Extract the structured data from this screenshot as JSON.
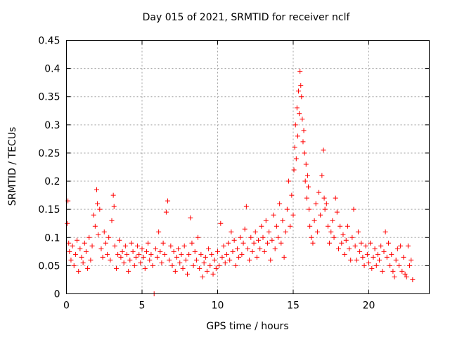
{
  "chart_data": {
    "type": "scatter",
    "title": "Day 015 of 2021, SRMTID for receiver nclf",
    "xlabel": "GPS time / hours",
    "ylabel": "SRMTID / TECUs",
    "xlim": [
      0,
      24
    ],
    "ylim": [
      0,
      0.45
    ],
    "xticks": [
      0,
      5,
      10,
      15,
      20
    ],
    "yticks": [
      0,
      0.05,
      0.1,
      0.15,
      0.2,
      0.25,
      0.3,
      0.35,
      0.4,
      0.45
    ],
    "grid": true,
    "marker": "+",
    "color": "#ff0000",
    "series": [
      {
        "name": "SRMTID",
        "points": [
          [
            0.05,
            0.125
          ],
          [
            0.1,
            0.165
          ],
          [
            0.15,
            0.09
          ],
          [
            0.2,
            0.075
          ],
          [
            0.3,
            0.06
          ],
          [
            0.4,
            0.085
          ],
          [
            0.5,
            0.05
          ],
          [
            0.6,
            0.07
          ],
          [
            0.7,
            0.095
          ],
          [
            0.8,
            0.04
          ],
          [
            0.9,
            0.08
          ],
          [
            1.0,
            0.065
          ],
          [
            1.1,
            0.055
          ],
          [
            1.2,
            0.09
          ],
          [
            1.3,
            0.075
          ],
          [
            1.4,
            0.045
          ],
          [
            1.5,
            0.1
          ],
          [
            1.6,
            0.06
          ],
          [
            1.7,
            0.085
          ],
          [
            1.8,
            0.14
          ],
          [
            1.9,
            0.12
          ],
          [
            2.0,
            0.185
          ],
          [
            2.05,
            0.16
          ],
          [
            2.1,
            0.105
          ],
          [
            2.2,
            0.15
          ],
          [
            2.3,
            0.08
          ],
          [
            2.4,
            0.065
          ],
          [
            2.5,
            0.11
          ],
          [
            2.6,
            0.09
          ],
          [
            2.7,
            0.07
          ],
          [
            2.8,
            0.1
          ],
          [
            2.9,
            0.06
          ],
          [
            3.0,
            0.13
          ],
          [
            3.1,
            0.175
          ],
          [
            3.15,
            0.155
          ],
          [
            3.2,
            0.085
          ],
          [
            3.3,
            0.045
          ],
          [
            3.4,
            0.07
          ],
          [
            3.5,
            0.095
          ],
          [
            3.6,
            0.065
          ],
          [
            3.7,
            0.075
          ],
          [
            3.8,
            0.055
          ],
          [
            3.9,
            0.085
          ],
          [
            4.0,
            0.07
          ],
          [
            4.1,
            0.04
          ],
          [
            4.2,
            0.06
          ],
          [
            4.3,
            0.09
          ],
          [
            4.4,
            0.075
          ],
          [
            4.5,
            0.05
          ],
          [
            4.6,
            0.065
          ],
          [
            4.7,
            0.085
          ],
          [
            4.8,
            0.07
          ],
          [
            4.9,
            0.055
          ],
          [
            5.0,
            0.08
          ],
          [
            5.1,
            0.065
          ],
          [
            5.2,
            0.045
          ],
          [
            5.3,
            0.075
          ],
          [
            5.4,
            0.09
          ],
          [
            5.5,
            0.06
          ],
          [
            5.6,
            0.07
          ],
          [
            5.7,
            0.05
          ],
          [
            5.8,
            0.0
          ],
          [
            5.9,
            0.08
          ],
          [
            6.0,
            0.065
          ],
          [
            6.1,
            0.11
          ],
          [
            6.2,
            0.075
          ],
          [
            6.3,
            0.055
          ],
          [
            6.4,
            0.09
          ],
          [
            6.5,
            0.07
          ],
          [
            6.6,
            0.145
          ],
          [
            6.7,
            0.165
          ],
          [
            6.8,
            0.06
          ],
          [
            6.9,
            0.085
          ],
          [
            7.0,
            0.05
          ],
          [
            7.1,
            0.075
          ],
          [
            7.2,
            0.04
          ],
          [
            7.3,
            0.065
          ],
          [
            7.4,
            0.08
          ],
          [
            7.5,
            0.055
          ],
          [
            7.6,
            0.07
          ],
          [
            7.7,
            0.045
          ],
          [
            7.8,
            0.085
          ],
          [
            7.9,
            0.06
          ],
          [
            8.0,
            0.035
          ],
          [
            8.1,
            0.07
          ],
          [
            8.2,
            0.135
          ],
          [
            8.3,
            0.09
          ],
          [
            8.4,
            0.05
          ],
          [
            8.5,
            0.075
          ],
          [
            8.6,
            0.06
          ],
          [
            8.7,
            0.1
          ],
          [
            8.8,
            0.045
          ],
          [
            8.9,
            0.07
          ],
          [
            9.0,
            0.03
          ],
          [
            9.1,
            0.055
          ],
          [
            9.2,
            0.065
          ],
          [
            9.3,
            0.04
          ],
          [
            9.4,
            0.08
          ],
          [
            9.5,
            0.05
          ],
          [
            9.6,
            0.07
          ],
          [
            9.7,
            0.035
          ],
          [
            9.8,
            0.06
          ],
          [
            9.9,
            0.045
          ],
          [
            10.0,
            0.075
          ],
          [
            10.1,
            0.05
          ],
          [
            10.2,
            0.125
          ],
          [
            10.3,
            0.065
          ],
          [
            10.4,
            0.085
          ],
          [
            10.5,
            0.055
          ],
          [
            10.6,
            0.07
          ],
          [
            10.7,
            0.09
          ],
          [
            10.8,
            0.06
          ],
          [
            10.9,
            0.11
          ],
          [
            11.0,
            0.075
          ],
          [
            11.1,
            0.095
          ],
          [
            11.2,
            0.05
          ],
          [
            11.3,
            0.08
          ],
          [
            11.4,
            0.065
          ],
          [
            11.5,
            0.1
          ],
          [
            11.6,
            0.07
          ],
          [
            11.7,
            0.09
          ],
          [
            11.8,
            0.115
          ],
          [
            11.9,
            0.155
          ],
          [
            12.0,
            0.08
          ],
          [
            12.1,
            0.06
          ],
          [
            12.2,
            0.1
          ],
          [
            12.3,
            0.075
          ],
          [
            12.4,
            0.09
          ],
          [
            12.5,
            0.11
          ],
          [
            12.6,
            0.065
          ],
          [
            12.7,
            0.095
          ],
          [
            12.8,
            0.08
          ],
          [
            12.9,
            0.12
          ],
          [
            13.0,
            0.1
          ],
          [
            13.1,
            0.075
          ],
          [
            13.2,
            0.13
          ],
          [
            13.3,
            0.09
          ],
          [
            13.4,
            0.11
          ],
          [
            13.5,
            0.06
          ],
          [
            13.6,
            0.095
          ],
          [
            13.7,
            0.14
          ],
          [
            13.8,
            0.08
          ],
          [
            13.9,
            0.12
          ],
          [
            14.0,
            0.1
          ],
          [
            14.1,
            0.16
          ],
          [
            14.2,
            0.09
          ],
          [
            14.3,
            0.13
          ],
          [
            14.4,
            0.065
          ],
          [
            14.5,
            0.11
          ],
          [
            14.6,
            0.15
          ],
          [
            14.7,
            0.2
          ],
          [
            14.8,
            0.12
          ],
          [
            14.9,
            0.175
          ],
          [
            15.0,
            0.14
          ],
          [
            15.05,
            0.22
          ],
          [
            15.1,
            0.26
          ],
          [
            15.15,
            0.3
          ],
          [
            15.2,
            0.24
          ],
          [
            15.25,
            0.33
          ],
          [
            15.3,
            0.28
          ],
          [
            15.35,
            0.36
          ],
          [
            15.4,
            0.32
          ],
          [
            15.45,
            0.395
          ],
          [
            15.5,
            0.37
          ],
          [
            15.55,
            0.35
          ],
          [
            15.6,
            0.31
          ],
          [
            15.65,
            0.27
          ],
          [
            15.7,
            0.29
          ],
          [
            15.75,
            0.25
          ],
          [
            15.8,
            0.2
          ],
          [
            15.85,
            0.23
          ],
          [
            15.9,
            0.17
          ],
          [
            15.95,
            0.21
          ],
          [
            16.0,
            0.19
          ],
          [
            16.05,
            0.15
          ],
          [
            16.1,
            0.12
          ],
          [
            16.2,
            0.1
          ],
          [
            16.3,
            0.09
          ],
          [
            16.4,
            0.13
          ],
          [
            16.5,
            0.16
          ],
          [
            16.6,
            0.11
          ],
          [
            16.7,
            0.18
          ],
          [
            16.8,
            0.14
          ],
          [
            16.9,
            0.21
          ],
          [
            17.0,
            0.255
          ],
          [
            17.05,
            0.17
          ],
          [
            17.1,
            0.15
          ],
          [
            17.2,
            0.16
          ],
          [
            17.3,
            0.12
          ],
          [
            17.4,
            0.09
          ],
          [
            17.5,
            0.11
          ],
          [
            17.6,
            0.13
          ],
          [
            17.7,
            0.1
          ],
          [
            17.8,
            0.17
          ],
          [
            17.9,
            0.145
          ],
          [
            18.0,
            0.08
          ],
          [
            18.1,
            0.12
          ],
          [
            18.2,
            0.09
          ],
          [
            18.3,
            0.105
          ],
          [
            18.4,
            0.07
          ],
          [
            18.5,
            0.095
          ],
          [
            18.6,
            0.12
          ],
          [
            18.7,
            0.08
          ],
          [
            18.8,
            0.06
          ],
          [
            18.9,
            0.1
          ],
          [
            19.0,
            0.15
          ],
          [
            19.1,
            0.085
          ],
          [
            19.2,
            0.06
          ],
          [
            19.3,
            0.11
          ],
          [
            19.4,
            0.075
          ],
          [
            19.5,
            0.09
          ],
          [
            19.6,
            0.065
          ],
          [
            19.7,
            0.05
          ],
          [
            19.8,
            0.085
          ],
          [
            19.9,
            0.07
          ],
          [
            20.0,
            0.055
          ],
          [
            20.1,
            0.09
          ],
          [
            20.2,
            0.045
          ],
          [
            20.3,
            0.065
          ],
          [
            20.4,
            0.08
          ],
          [
            20.5,
            0.05
          ],
          [
            20.6,
            0.07
          ],
          [
            20.7,
            0.06
          ],
          [
            20.8,
            0.085
          ],
          [
            20.9,
            0.04
          ],
          [
            21.0,
            0.075
          ],
          [
            21.1,
            0.11
          ],
          [
            21.2,
            0.065
          ],
          [
            21.3,
            0.09
          ],
          [
            21.4,
            0.05
          ],
          [
            21.5,
            0.07
          ],
          [
            21.6,
            0.04
          ],
          [
            21.7,
            0.03
          ],
          [
            21.8,
            0.06
          ],
          [
            21.9,
            0.08
          ],
          [
            22.0,
            0.05
          ],
          [
            22.1,
            0.085
          ],
          [
            22.2,
            0.04
          ],
          [
            22.3,
            0.065
          ],
          [
            22.4,
            0.035
          ],
          [
            22.5,
            0.03
          ],
          [
            22.6,
            0.085
          ],
          [
            22.7,
            0.05
          ],
          [
            22.8,
            0.06
          ],
          [
            22.9,
            0.025
          ]
        ]
      }
    ]
  }
}
